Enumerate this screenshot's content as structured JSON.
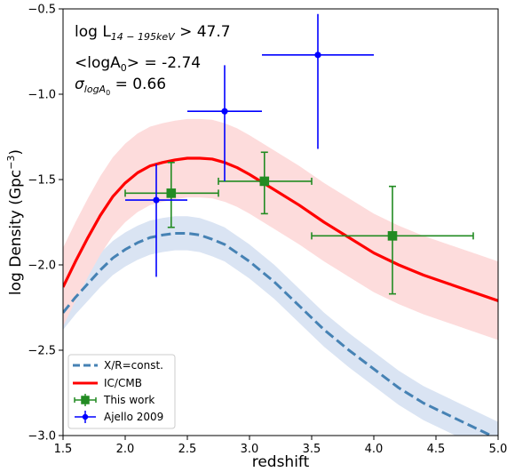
{
  "chart_data": {
    "type": "scatter",
    "xlabel": "redshift",
    "ylabel": "log Density (Gpc",
    "ylabel_sup": "−3",
    "ylabel_close": ")",
    "xlim": [
      1.5,
      5.0
    ],
    "ylim": [
      -3.0,
      -0.5
    ],
    "xticks": [
      1.5,
      2.0,
      2.5,
      3.0,
      3.5,
      4.0,
      4.5,
      5.0
    ],
    "xtick_labels": [
      "1.5",
      "2.0",
      "2.5",
      "3.0",
      "3.5",
      "4.0",
      "4.5",
      "5.0"
    ],
    "yticks": [
      -3.0,
      -2.5,
      -2.0,
      -1.5,
      -1.0,
      -0.5
    ],
    "ytick_labels": [
      "−3.0",
      "−2.5",
      "−2.0",
      "−1.5",
      "−1.0",
      "−0.5"
    ],
    "grid": false,
    "legend_position": "bottom-left",
    "annotations": {
      "line1_main": "log L",
      "line1_sub": "14 − 195keV",
      "line1_rest": " > 47.7",
      "line2": "<logA",
      "line2_sub": "0",
      "line2_rest": "> = -2.74",
      "line3_main": "σ",
      "line3_sub": "logA",
      "line3_subsub": "0",
      "line3_rest": " = 0.66"
    },
    "series": [
      {
        "name": "X/R=const.",
        "kind": "model",
        "color": "#4682b4",
        "band_color": "#dae4f3",
        "style": "dashed",
        "x": [
          1.5,
          1.6,
          1.7,
          1.8,
          1.9,
          2.0,
          2.1,
          2.2,
          2.3,
          2.4,
          2.5,
          2.6,
          2.7,
          2.8,
          2.9,
          3.0,
          3.2,
          3.4,
          3.6,
          3.8,
          4.0,
          4.2,
          4.4,
          4.6,
          4.8,
          5.0
        ],
        "y": [
          -2.28,
          -2.19,
          -2.11,
          -2.03,
          -1.96,
          -1.91,
          -1.87,
          -1.84,
          -1.825,
          -1.815,
          -1.815,
          -1.825,
          -1.85,
          -1.88,
          -1.93,
          -1.98,
          -2.1,
          -2.24,
          -2.38,
          -2.5,
          -2.61,
          -2.72,
          -2.81,
          -2.88,
          -2.95,
          -3.02
        ],
        "band_halfwidth": 0.1
      },
      {
        "name": "IC/CMB",
        "kind": "model",
        "color": "#ff0000",
        "band_color": "#fddcdc",
        "style": "solid",
        "x": [
          1.5,
          1.6,
          1.7,
          1.8,
          1.9,
          2.0,
          2.1,
          2.2,
          2.3,
          2.4,
          2.5,
          2.6,
          2.7,
          2.8,
          2.9,
          3.0,
          3.2,
          3.4,
          3.6,
          3.8,
          4.0,
          4.2,
          4.4,
          4.6,
          4.8,
          5.0
        ],
        "y": [
          -2.13,
          -1.98,
          -1.84,
          -1.71,
          -1.6,
          -1.52,
          -1.46,
          -1.42,
          -1.4,
          -1.385,
          -1.375,
          -1.375,
          -1.38,
          -1.4,
          -1.43,
          -1.47,
          -1.56,
          -1.65,
          -1.75,
          -1.84,
          -1.93,
          -2.0,
          -2.06,
          -2.11,
          -2.16,
          -2.21
        ],
        "band_halfwidth": 0.23
      },
      {
        "name": "This work",
        "kind": "points",
        "color": "#228b22",
        "marker": "square",
        "points": [
          {
            "x": 2.37,
            "y": -1.58,
            "xlo": 2.0,
            "xhi": 2.75,
            "ylo": -1.78,
            "yhi": -1.4
          },
          {
            "x": 3.12,
            "y": -1.51,
            "xlo": 2.75,
            "xhi": 3.5,
            "ylo": -1.7,
            "yhi": -1.34
          },
          {
            "x": 4.15,
            "y": -1.83,
            "xlo": 3.5,
            "xhi": 4.8,
            "ylo": -2.17,
            "yhi": -1.54
          }
        ]
      },
      {
        "name": "Ajello 2009",
        "kind": "points",
        "color": "#0000ff",
        "marker": "circle",
        "points": [
          {
            "x": 2.25,
            "y": -1.62,
            "xlo": 2.0,
            "xhi": 2.5,
            "ylo": -2.07,
            "yhi": -1.41
          },
          {
            "x": 2.8,
            "y": -1.1,
            "xlo": 2.5,
            "xhi": 3.1,
            "ylo": -1.51,
            "yhi": -0.83
          },
          {
            "x": 3.55,
            "y": -0.77,
            "xlo": 3.1,
            "xhi": 4.0,
            "ylo": -1.32,
            "yhi": -0.53
          }
        ]
      }
    ]
  }
}
